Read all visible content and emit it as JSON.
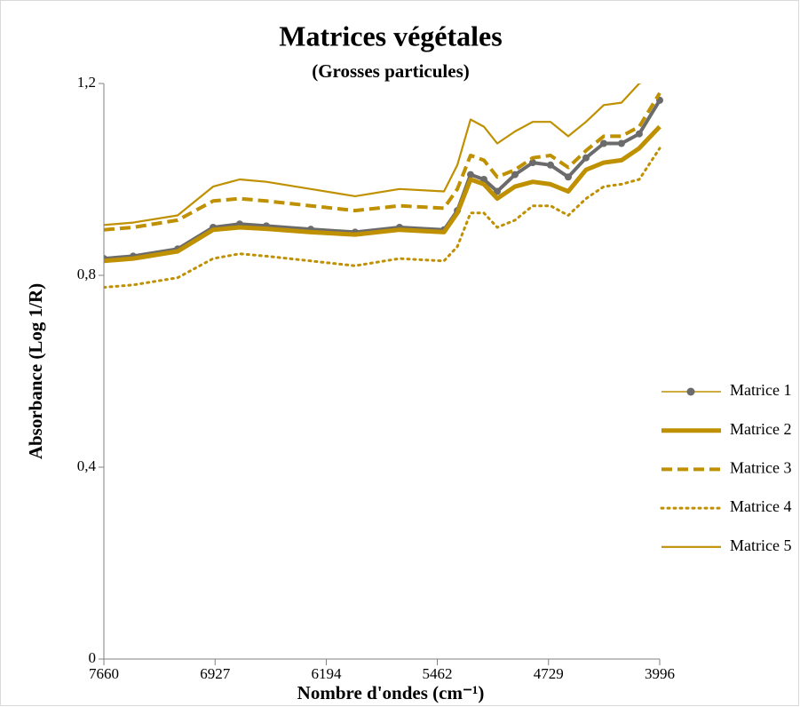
{
  "chart_data": {
    "type": "line",
    "title": "Matrices végétales",
    "subtitle": "(Grosses particules)",
    "xlabel": "Nombre d'ondes (cm⁻¹)",
    "ylabel": "Absorbance (Log 1/R)",
    "x": [
      7660,
      7467,
      7174,
      6940,
      6765,
      6589,
      6296,
      6004,
      5711,
      5418,
      5330,
      5243,
      5155,
      5067,
      4950,
      4833,
      4716,
      4599,
      4482,
      4365,
      4248,
      4131,
      3996
    ],
    "series": [
      {
        "name": "Matrice 1",
        "color": "#6b6b6b",
        "line_style": "markers",
        "values": [
          0.835,
          0.84,
          0.855,
          0.9,
          0.907,
          0.903,
          0.896,
          0.89,
          0.9,
          0.895,
          0.935,
          1.01,
          1.0,
          0.975,
          1.01,
          1.035,
          1.03,
          1.005,
          1.045,
          1.075,
          1.075,
          1.095,
          1.165
        ]
      },
      {
        "name": "Matrice 2",
        "color": "#bf9000",
        "line_style": "solid",
        "values": [
          0.83,
          0.835,
          0.85,
          0.895,
          0.9,
          0.897,
          0.89,
          0.885,
          0.895,
          0.89,
          0.93,
          1.0,
          0.99,
          0.96,
          0.985,
          0.995,
          0.99,
          0.975,
          1.02,
          1.035,
          1.04,
          1.065,
          1.11
        ]
      },
      {
        "name": "Matrice 3",
        "color": "#bf9000",
        "line_style": "dashed",
        "values": [
          0.895,
          0.9,
          0.915,
          0.955,
          0.96,
          0.955,
          0.945,
          0.935,
          0.945,
          0.94,
          0.98,
          1.05,
          1.04,
          1.005,
          1.02,
          1.045,
          1.05,
          1.025,
          1.06,
          1.09,
          1.09,
          1.11,
          1.18
        ]
      },
      {
        "name": "Matrice 4",
        "color": "#bf9000",
        "line_style": "dotted",
        "values": [
          0.775,
          0.78,
          0.795,
          0.835,
          0.845,
          0.84,
          0.83,
          0.82,
          0.835,
          0.83,
          0.86,
          0.93,
          0.93,
          0.9,
          0.915,
          0.945,
          0.945,
          0.925,
          0.96,
          0.985,
          0.99,
          1.0,
          1.065
        ]
      },
      {
        "name": "Matrice 5",
        "color": "#bf9000",
        "line_style": "thin",
        "values": [
          0.905,
          0.91,
          0.925,
          0.985,
          1.0,
          0.995,
          0.98,
          0.965,
          0.98,
          0.975,
          1.03,
          1.125,
          1.11,
          1.075,
          1.1,
          1.12,
          1.12,
          1.09,
          1.12,
          1.155,
          1.16,
          1.2,
          1.22
        ]
      }
    ],
    "xlim": [
      7660,
      3996
    ],
    "xticks": [
      7660,
      6927,
      6194,
      5462,
      4729,
      3996
    ],
    "ylim": [
      0,
      1.2
    ],
    "yticks": [
      0,
      {
        "value": 0.4,
        "label": "0,4"
      },
      {
        "value": 0.8,
        "label": "0,8"
      },
      {
        "value": 1.2,
        "label": "1,2"
      }
    ],
    "legend": "right"
  }
}
